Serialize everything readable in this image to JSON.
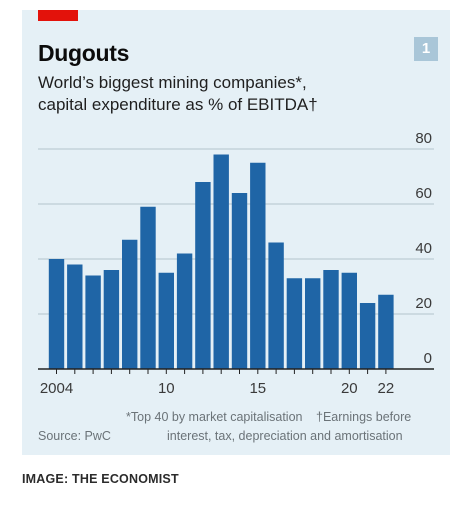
{
  "header": {
    "title": "Dugouts",
    "subtitle_line1": "World’s biggest mining companies*,",
    "subtitle_line2": "capital expenditure as % of EBITDA†",
    "badge": "1"
  },
  "footnotes": {
    "note_star": "*Top 40 by market capitalisation",
    "note_dagger_1": "†Earnings before",
    "note_dagger_2": "interest, tax, depreciation and amortisation",
    "source": "Source: PwC"
  },
  "credit": "IMAGE: THE ECONOMIST",
  "colors": {
    "bar": "#1f65a6",
    "panel": "#e5f0f6",
    "brand_red": "#e3120b",
    "grid": "#b3c3cc"
  },
  "chart_data": {
    "type": "bar",
    "title": "Dugouts",
    "subtitle": "World’s biggest mining companies*, capital expenditure as % of EBITDA†",
    "x": [
      2004,
      2005,
      2006,
      2007,
      2008,
      2009,
      2010,
      2011,
      2012,
      2013,
      2014,
      2015,
      2016,
      2017,
      2018,
      2019,
      2020,
      2021,
      2022
    ],
    "values": [
      40,
      38,
      34,
      36,
      47,
      59,
      35,
      42,
      68,
      78,
      64,
      75,
      46,
      33,
      33,
      36,
      35,
      24,
      27
    ],
    "x_tick_labels": [
      {
        "x": 2004,
        "label": "2004"
      },
      {
        "x": 2010,
        "label": "10"
      },
      {
        "x": 2015,
        "label": "15"
      },
      {
        "x": 2020,
        "label": "20"
      },
      {
        "x": 2022,
        "label": "22"
      }
    ],
    "y_ticks": [
      0,
      20,
      40,
      60,
      80
    ],
    "ylim": [
      0,
      80
    ],
    "y_axis_side": "right",
    "grid": true,
    "xlabel": "",
    "ylabel": ""
  }
}
